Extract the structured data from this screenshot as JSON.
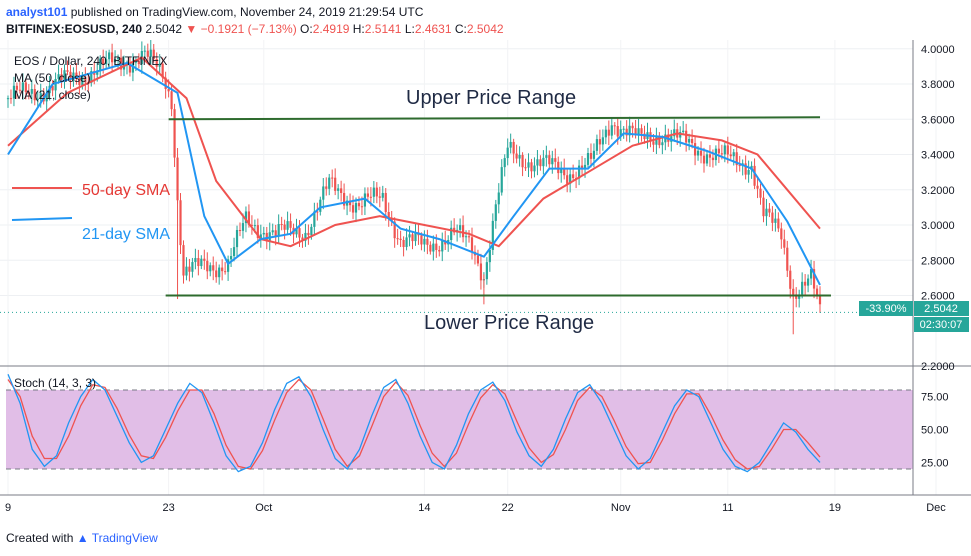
{
  "header": {
    "publisher": "analyst101",
    "published_text": "published on TradingView.com, November 24, 2019 21:29:54 UTC",
    "symbol": "BITFINEX:EOSUSD, 240",
    "last": "2.5042",
    "change": "▼ −0.1921 (−7.13%)",
    "ohlc": {
      "O": "2.4919",
      "H": "2.5141",
      "L": "2.4631",
      "C": "2.5042"
    }
  },
  "legend": {
    "title": "EOS / Dollar, 240, BITFINEX",
    "ma1": "MA (50, close)",
    "ma2": "MA (21, close)",
    "stoch": "Stoch (14, 3, 3)"
  },
  "annotations": {
    "upper": "Upper Price Range",
    "lower": "Lower Price Range",
    "sma50": "50-day SMA",
    "sma21": "21-day SMA"
  },
  "price_tags": {
    "pct": "-33.90%",
    "price": "2.5042",
    "countdown": "02:30:07"
  },
  "footer": {
    "created": "Created with",
    "brand": "TradingView"
  },
  "colors": {
    "up": "#26a69a",
    "down": "#ef5350",
    "sma50": "#ef5350",
    "sma21": "#2196f3",
    "range_line": "#2e6b2e",
    "stoch_k": "#2196f3",
    "stoch_d": "#ef5350",
    "stoch_band": "#e1bee7"
  },
  "chart_data": [
    {
      "type": "candlestick",
      "title": "EOS / Dollar, 240, BITFINEX",
      "ylim": [
        2.2,
        4.05
      ],
      "yticks": [
        "4.0000",
        "3.8000",
        "3.6000",
        "3.4000",
        "3.2000",
        "3.0000",
        "2.8000",
        "2.6000",
        "2.2000"
      ],
      "xticks": [
        "9",
        "23",
        "Oct",
        "14",
        "22",
        "Nov",
        "11",
        "19",
        "Dec"
      ],
      "price_path": [
        {
          "i": 0,
          "p": 3.72
        },
        {
          "i": 12,
          "p": 3.77
        },
        {
          "i": 24,
          "p": 3.85
        },
        {
          "i": 36,
          "p": 3.92
        },
        {
          "i": 46,
          "p": 3.96
        },
        {
          "i": 52,
          "p": 3.85
        },
        {
          "i": 55,
          "p": 3.72
        },
        {
          "i": 57,
          "p": 3.15
        },
        {
          "i": 59,
          "p": 2.72
        },
        {
          "i": 66,
          "p": 2.77
        },
        {
          "i": 74,
          "p": 2.78
        },
        {
          "i": 80,
          "p": 3.02
        },
        {
          "i": 90,
          "p": 2.95
        },
        {
          "i": 100,
          "p": 2.97
        },
        {
          "i": 108,
          "p": 3.22
        },
        {
          "i": 118,
          "p": 3.12
        },
        {
          "i": 126,
          "p": 3.15
        },
        {
          "i": 132,
          "p": 2.92
        },
        {
          "i": 140,
          "p": 2.88
        },
        {
          "i": 150,
          "p": 2.95
        },
        {
          "i": 156,
          "p": 2.88
        },
        {
          "i": 160,
          "p": 2.72
        },
        {
          "i": 164,
          "p": 3.1
        },
        {
          "i": 168,
          "p": 3.42
        },
        {
          "i": 178,
          "p": 3.35
        },
        {
          "i": 188,
          "p": 3.3
        },
        {
          "i": 196,
          "p": 3.35
        },
        {
          "i": 203,
          "p": 3.6
        },
        {
          "i": 212,
          "p": 3.48
        },
        {
          "i": 220,
          "p": 3.52
        },
        {
          "i": 230,
          "p": 3.45
        },
        {
          "i": 240,
          "p": 3.38
        },
        {
          "i": 250,
          "p": 3.35
        },
        {
          "i": 254,
          "p": 3.05
        },
        {
          "i": 260,
          "p": 2.95
        },
        {
          "i": 264,
          "p": 2.62
        },
        {
          "i": 270,
          "p": 2.68
        },
        {
          "i": 273,
          "p": 2.5
        }
      ],
      "sma50": [
        {
          "i": 0,
          "p": 3.45
        },
        {
          "i": 20,
          "p": 3.75
        },
        {
          "i": 45,
          "p": 3.95
        },
        {
          "i": 60,
          "p": 3.72
        },
        {
          "i": 70,
          "p": 3.25
        },
        {
          "i": 85,
          "p": 2.92
        },
        {
          "i": 95,
          "p": 2.88
        },
        {
          "i": 110,
          "p": 3.0
        },
        {
          "i": 125,
          "p": 3.05
        },
        {
          "i": 140,
          "p": 3.0
        },
        {
          "i": 155,
          "p": 2.95
        },
        {
          "i": 165,
          "p": 2.88
        },
        {
          "i": 180,
          "p": 3.15
        },
        {
          "i": 195,
          "p": 3.3
        },
        {
          "i": 210,
          "p": 3.45
        },
        {
          "i": 225,
          "p": 3.52
        },
        {
          "i": 240,
          "p": 3.48
        },
        {
          "i": 252,
          "p": 3.4
        },
        {
          "i": 262,
          "p": 3.2
        },
        {
          "i": 273,
          "p": 2.98
        }
      ],
      "sma21": [
        {
          "i": 0,
          "p": 3.4
        },
        {
          "i": 15,
          "p": 3.8
        },
        {
          "i": 40,
          "p": 3.92
        },
        {
          "i": 57,
          "p": 3.75
        },
        {
          "i": 66,
          "p": 3.05
        },
        {
          "i": 74,
          "p": 2.78
        },
        {
          "i": 85,
          "p": 2.92
        },
        {
          "i": 95,
          "p": 2.95
        },
        {
          "i": 105,
          "p": 3.1
        },
        {
          "i": 120,
          "p": 3.15
        },
        {
          "i": 132,
          "p": 2.98
        },
        {
          "i": 145,
          "p": 2.92
        },
        {
          "i": 160,
          "p": 2.82
        },
        {
          "i": 170,
          "p": 3.05
        },
        {
          "i": 182,
          "p": 3.32
        },
        {
          "i": 195,
          "p": 3.32
        },
        {
          "i": 207,
          "p": 3.52
        },
        {
          "i": 220,
          "p": 3.5
        },
        {
          "i": 235,
          "p": 3.42
        },
        {
          "i": 250,
          "p": 3.32
        },
        {
          "i": 262,
          "p": 3.02
        },
        {
          "i": 273,
          "p": 2.66
        }
      ],
      "upper_range": {
        "i0": 54,
        "i1": 272,
        "p": 3.6
      },
      "lower_range": {
        "i0": 53,
        "i1": 274,
        "p": 2.6
      },
      "last_price": 2.5042
    },
    {
      "type": "line",
      "title": "Stoch (14, 3, 3)",
      "ylim": [
        0,
        100
      ],
      "yticks": [
        "75.00",
        "50.00",
        "25.00"
      ],
      "band": [
        20,
        80
      ],
      "series": [
        {
          "name": "%K",
          "values": [
            92,
            70,
            35,
            22,
            30,
            55,
            75,
            88,
            80,
            60,
            40,
            25,
            30,
            50,
            70,
            85,
            78,
            55,
            30,
            18,
            22,
            40,
            65,
            85,
            90,
            75,
            50,
            28,
            20,
            35,
            60,
            82,
            88,
            70,
            45,
            25,
            20,
            38,
            62,
            80,
            86,
            72,
            48,
            30,
            22,
            35,
            58,
            78,
            84,
            70,
            50,
            30,
            20,
            28,
            48,
            68,
            80,
            75,
            55,
            35,
            22,
            18,
            25,
            40,
            55,
            48,
            35,
            25
          ]
        },
        {
          "name": "%D",
          "values": [
            88,
            75,
            45,
            28,
            28,
            45,
            68,
            84,
            82,
            66,
            46,
            30,
            28,
            44,
            64,
            80,
            80,
            62,
            38,
            22,
            20,
            34,
            57,
            78,
            88,
            80,
            58,
            35,
            22,
            30,
            52,
            75,
            86,
            76,
            53,
            32,
            22,
            32,
            54,
            74,
            84,
            77,
            56,
            36,
            25,
            31,
            50,
            72,
            82,
            75,
            57,
            37,
            24,
            25,
            42,
            62,
            77,
            77,
            61,
            42,
            27,
            20,
            22,
            35,
            50,
            50,
            40,
            29
          ]
        }
      ]
    }
  ]
}
